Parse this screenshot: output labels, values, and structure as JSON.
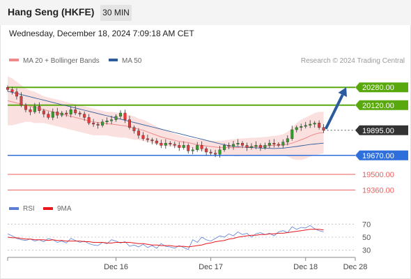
{
  "header": {
    "title": "Hang Seng (HKFE)",
    "interval": "30 MIN",
    "datetime": "Wednesday, December 18, 2024 7:09:18 AM CET"
  },
  "legend": {
    "bollinger": {
      "label": "MA 20 + Bollinger Bands",
      "color": "#f08a8a"
    },
    "ma50": {
      "label": "MA 50",
      "color": "#2e5c9a"
    },
    "credit": "Research © 2024 Trading Central"
  },
  "rsi_legend": {
    "rsi": {
      "label": "RSI",
      "color": "#5b7fd6"
    },
    "ma9": {
      "label": "9MA",
      "color": "#e8171d"
    }
  },
  "colors": {
    "up": "#33a02c",
    "down": "#e63b3b",
    "resistance": "#58a80e",
    "support": "#2f6fdb",
    "target": "#ef5b5b",
    "arrow": "#2b5b9e",
    "band_fill": "#fbe0e0",
    "current": "#333333"
  },
  "chart_data": [
    {
      "type": "candlestick",
      "title": "Hang Seng (HKFE)",
      "ylim": [
        19250,
        20450
      ],
      "x_ticks": [
        {
          "label": "Dec 16",
          "x": 24
        },
        {
          "label": "Dec 17",
          "x": 45
        },
        {
          "label": "Dec 18",
          "x": 66
        },
        {
          "label": "Dec 28",
          "x": 77
        }
      ],
      "x_range": [
        0,
        77
      ],
      "last_price_x": 70,
      "levels": [
        {
          "label": "20280.00",
          "value": 20280,
          "kind": "resistance"
        },
        {
          "label": "20120.00",
          "value": 20120,
          "kind": "resistance"
        },
        {
          "label": "19895.00",
          "value": 19895,
          "kind": "current"
        },
        {
          "label": "19670.00",
          "value": 19670,
          "kind": "support"
        },
        {
          "label": "19500.00",
          "value": 19500,
          "kind": "target"
        },
        {
          "label": "19360.00",
          "value": 19360,
          "kind": "target"
        }
      ],
      "projection": {
        "from": [
          70,
          19895
        ],
        "to": [
          75,
          20280
        ]
      },
      "close": [
        20260,
        20240,
        20200,
        20120,
        20080,
        20060,
        20110,
        20070,
        20040,
        20010,
        20060,
        20030,
        20050,
        20040,
        20080,
        20050,
        20040,
        20010,
        19960,
        19950,
        19940,
        19970,
        19980,
        19990,
        20020,
        20050,
        19990,
        19920,
        19890,
        19850,
        19820,
        19810,
        19800,
        19780,
        19760,
        19780,
        19770,
        19760,
        19740,
        19760,
        19710,
        19720,
        19760,
        19730,
        19700,
        19690,
        19680,
        19720,
        19760,
        19750,
        19770,
        19780,
        19760,
        19740,
        19750,
        19760,
        19740,
        19760,
        19780,
        19770,
        19760,
        19790,
        19820,
        19900,
        19920,
        19930,
        19940,
        19950,
        19960,
        19920,
        19895
      ],
      "ma20": [
        20160,
        20150,
        20140,
        20130,
        20120,
        20110,
        20100,
        20090,
        20080,
        20070,
        20060,
        20050,
        20040,
        20030,
        20020,
        20010,
        20000,
        19990,
        19980,
        19970,
        19965,
        19960,
        19955,
        19950,
        19945,
        19940,
        19935,
        19925,
        19915,
        19905,
        19895,
        19880,
        19865,
        19850,
        19835,
        19825,
        19815,
        19805,
        19795,
        19790,
        19785,
        19775,
        19765,
        19760,
        19755,
        19750,
        19745,
        19740,
        19740,
        19740,
        19740,
        19740,
        19745,
        19745,
        19750,
        19750,
        19752,
        19755,
        19758,
        19760,
        19762,
        19765,
        19770,
        19780,
        19795,
        19810,
        19825,
        19845,
        19860,
        19870,
        19875
      ],
      "bb_upper": [
        20380,
        20360,
        20330,
        20300,
        20270,
        20250,
        20240,
        20220,
        20200,
        20190,
        20180,
        20170,
        20160,
        20150,
        20140,
        20130,
        20120,
        20110,
        20100,
        20090,
        20080,
        20070,
        20060,
        20060,
        20055,
        20050,
        20040,
        20030,
        20020,
        20000,
        19990,
        19970,
        19950,
        19930,
        19910,
        19895,
        19880,
        19865,
        19850,
        19840,
        19830,
        19820,
        19815,
        19810,
        19805,
        19800,
        19800,
        19800,
        19805,
        19810,
        19815,
        19820,
        19822,
        19825,
        19828,
        19830,
        19832,
        19835,
        19840,
        19845,
        19850,
        19860,
        19880,
        19920,
        19960,
        19990,
        20010,
        20030,
        20050,
        20060,
        20060
      ],
      "bb_lower": [
        19940,
        19940,
        19950,
        19960,
        19970,
        19970,
        19960,
        19960,
        19960,
        19950,
        19940,
        19930,
        19920,
        19910,
        19900,
        19890,
        19880,
        19870,
        19860,
        19850,
        19850,
        19850,
        19850,
        19840,
        19835,
        19830,
        19830,
        19820,
        19810,
        19810,
        19800,
        19790,
        19780,
        19770,
        19760,
        19755,
        19750,
        19745,
        19740,
        19740,
        19740,
        19730,
        19715,
        19710,
        19705,
        19700,
        19690,
        19680,
        19675,
        19670,
        19665,
        19660,
        19668,
        19665,
        19672,
        19670,
        19672,
        19675,
        19676,
        19675,
        19674,
        19670,
        19660,
        19640,
        19630,
        19630,
        19640,
        19660,
        19670,
        19680,
        19690
      ],
      "ma50": [
        20245,
        20235,
        20225,
        20215,
        20205,
        20195,
        20185,
        20175,
        20165,
        20155,
        20145,
        20135,
        20125,
        20115,
        20105,
        20095,
        20085,
        20075,
        20065,
        20055,
        20045,
        20035,
        20025,
        20015,
        20005,
        19995,
        19985,
        19975,
        19965,
        19955,
        19945,
        19935,
        19925,
        19915,
        19905,
        19895,
        19885,
        19875,
        19865,
        19855,
        19845,
        19835,
        19825,
        19815,
        19805,
        19795,
        19785,
        19775,
        19765,
        19758,
        19752,
        19748,
        19745,
        19742,
        19740,
        19738,
        19736,
        19734,
        19733,
        19732,
        19733,
        19735,
        19740,
        19745,
        19750,
        19756,
        19762,
        19768,
        19772,
        19776,
        19780
      ]
    },
    {
      "type": "line",
      "title": "RSI",
      "ylim": [
        20,
        80
      ],
      "y_ticks": [
        70,
        50,
        30
      ],
      "rsi": [
        55,
        52,
        48,
        46,
        45,
        47,
        44,
        46,
        43,
        48,
        46,
        42,
        44,
        41,
        48,
        45,
        42,
        44,
        40,
        38,
        37,
        42,
        40,
        46,
        44,
        41,
        43,
        36,
        38,
        35,
        39,
        34,
        37,
        33,
        40,
        36,
        35,
        33,
        37,
        34,
        31,
        46,
        42,
        50,
        46,
        44,
        48,
        52,
        50,
        55,
        52,
        58,
        54,
        56,
        50,
        55,
        57,
        54,
        56,
        52,
        58,
        60,
        57,
        66,
        62,
        65,
        64,
        68,
        63,
        60,
        58
      ],
      "ma9": [
        50,
        49,
        49,
        48,
        47,
        47,
        46,
        46,
        46,
        45,
        46,
        45,
        45,
        44,
        44,
        44,
        44,
        43,
        43,
        42,
        42,
        42,
        41,
        41,
        42,
        42,
        42,
        42,
        41,
        40,
        40,
        39,
        38,
        38,
        37,
        37,
        37,
        36,
        36,
        36,
        35,
        36,
        37,
        38,
        40,
        41,
        43,
        44,
        45,
        47,
        48,
        50,
        51,
        52,
        53,
        53,
        54,
        54,
        55,
        55,
        56,
        56,
        57,
        58,
        59,
        60,
        61,
        62,
        62,
        62,
        61
      ]
    }
  ]
}
